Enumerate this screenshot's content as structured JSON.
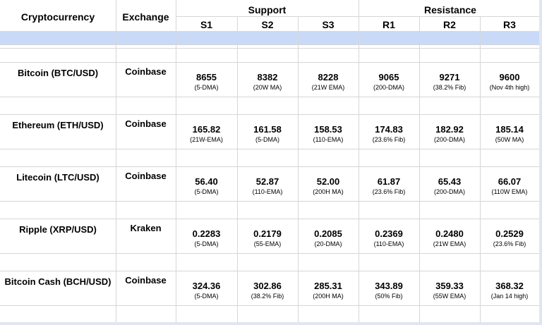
{
  "headers": {
    "crypto": "Cryptocurrency",
    "exchange": "Exchange",
    "support": "Support",
    "resistance": "Resistance",
    "levels": [
      "S1",
      "S2",
      "S3",
      "R1",
      "R2",
      "R3"
    ]
  },
  "rows": [
    {
      "name": "Bitcoin (BTC/USD)",
      "exchange": "Coinbase",
      "levels": [
        {
          "value": "8655",
          "note": "(5-DMA)"
        },
        {
          "value": "8382",
          "note": "(20W MA)"
        },
        {
          "value": "8228",
          "note": "(21W EMA)"
        },
        {
          "value": "9065",
          "note": "(200-DMA)"
        },
        {
          "value": "9271",
          "note": "(38.2% Fib)"
        },
        {
          "value": "9600",
          "note": "(Nov 4th high)"
        }
      ]
    },
    {
      "name": "Ethereum (ETH/USD)",
      "exchange": "Coinbase",
      "levels": [
        {
          "value": "165.82",
          "note": "(21W-EMA)"
        },
        {
          "value": "161.58",
          "note": "(5-DMA)"
        },
        {
          "value": "158.53",
          "note": "(110-EMA)"
        },
        {
          "value": "174.83",
          "note": "(23.6% Fib)"
        },
        {
          "value": "182.92",
          "note": "(200-DMA)"
        },
        {
          "value": "185.14",
          "note": "(50W MA)"
        }
      ]
    },
    {
      "name": "Litecoin (LTC/USD)",
      "exchange": "Coinbase",
      "levels": [
        {
          "value": "56.40",
          "note": "(5-DMA)"
        },
        {
          "value": "52.87",
          "note": "(110-EMA)"
        },
        {
          "value": "52.00",
          "note": "(200H MA)"
        },
        {
          "value": "61.87",
          "note": "(23.6% Fib)"
        },
        {
          "value": "65.43",
          "note": "(200-DMA)"
        },
        {
          "value": "66.07",
          "note": "(110W EMA)"
        }
      ]
    },
    {
      "name": "Ripple (XRP/USD)",
      "exchange": "Kraken",
      "levels": [
        {
          "value": "0.2283",
          "note": "(5-DMA)"
        },
        {
          "value": "0.2179",
          "note": "(55-EMA)"
        },
        {
          "value": "0.2085",
          "note": "(20-DMA)"
        },
        {
          "value": "0.2369",
          "note": "(110-EMA)"
        },
        {
          "value": "0.2480",
          "note": "(21W EMA)"
        },
        {
          "value": "0.2529",
          "note": "(23.6% Fib)"
        }
      ]
    },
    {
      "name": "Bitcoin Cash (BCH/USD)",
      "exchange": "Coinbase",
      "levels": [
        {
          "value": "324.36",
          "note": "(5-DMA)"
        },
        {
          "value": "302.86",
          "note": "(38.2% Fib)"
        },
        {
          "value": "285.31",
          "note": "(200H MA)"
        },
        {
          "value": "343.89",
          "note": "(50% Fib)"
        },
        {
          "value": "359.33",
          "note": "(55W EMA)"
        },
        {
          "value": "368.32",
          "note": "(Jan 14 high)"
        }
      ]
    }
  ]
}
